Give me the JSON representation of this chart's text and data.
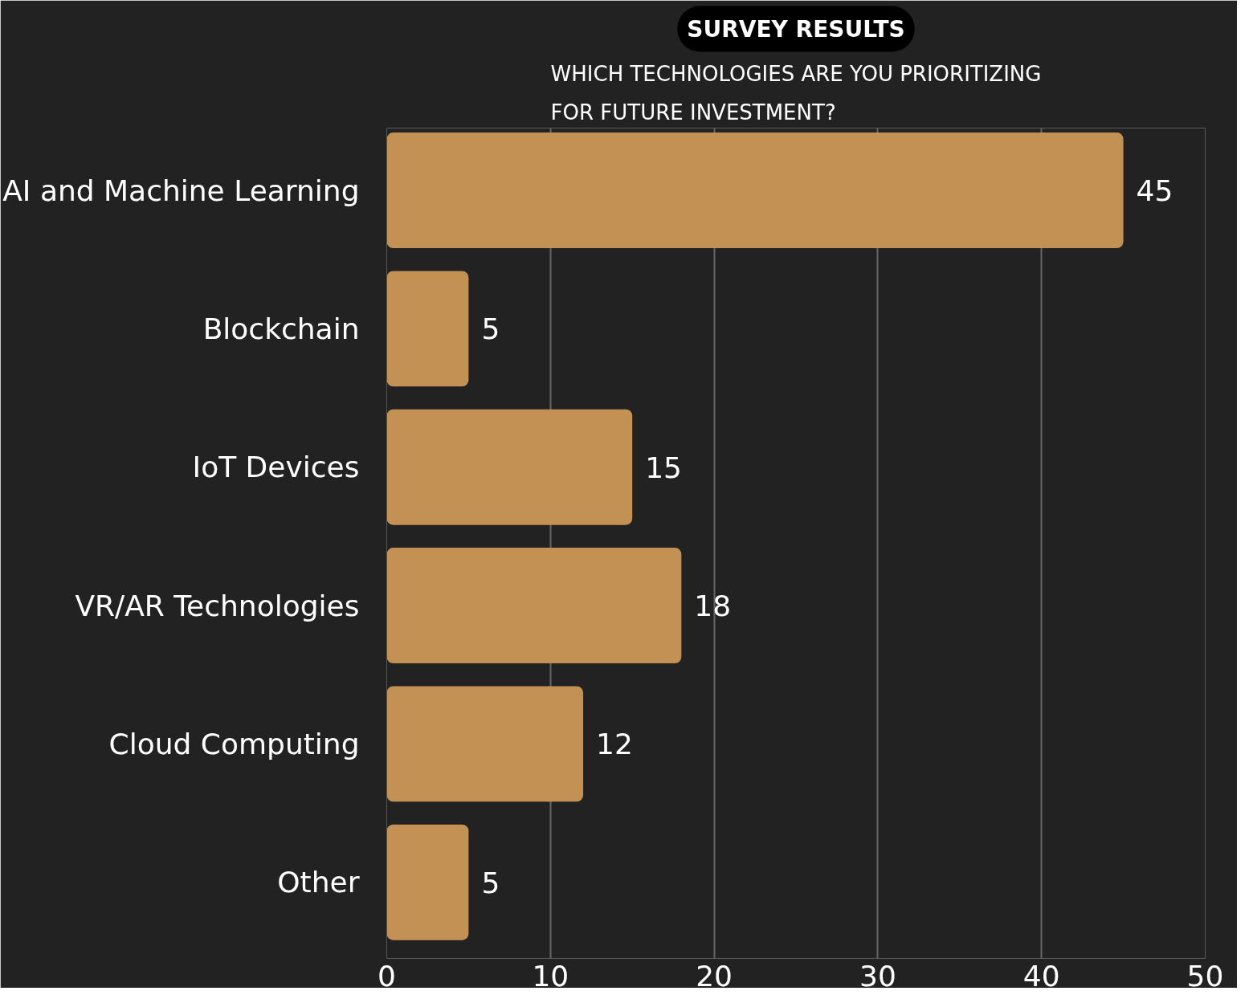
{
  "chart_data": {
    "type": "bar",
    "orientation": "horizontal",
    "title": "SURVEY RESULTS",
    "subtitle": "WHICH TECHNOLOGIES ARE YOU PRIORITIZING\nFOR FUTURE INVESTMENT?",
    "categories": [
      "AI and Machine Learning",
      "Blockchain",
      "IoT Devices",
      "VR/AR Technologies",
      "Cloud Computing",
      "Other"
    ],
    "values": [
      45,
      5,
      15,
      18,
      12,
      5
    ],
    "color": "#c39153",
    "xlim": [
      0,
      50
    ],
    "xticks": [
      0,
      10,
      20,
      30,
      40,
      50
    ],
    "grid": "x",
    "data_labels": true
  }
}
